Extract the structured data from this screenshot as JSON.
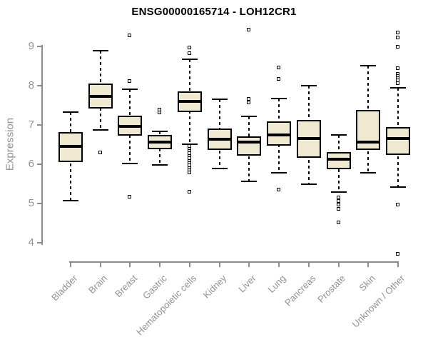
{
  "chart_data": {
    "type": "box",
    "title": "ENSG00000165714 - LOH12CR1",
    "ylabel": "Expression",
    "xlabel": "",
    "ylim": [
      4,
      9
    ],
    "yticks": [
      9,
      8,
      7,
      6,
      5,
      4
    ],
    "grid": false,
    "legend": "none",
    "categories": [
      "Bladder",
      "Brain",
      "Breast",
      "Gastric",
      "Hematopoietic cells",
      "Kidney",
      "Liver",
      "Lung",
      "Pancreas",
      "Prostate",
      "Skin",
      "Unknown / Other"
    ],
    "boxes": [
      {
        "category": "Bladder",
        "whisker_low": 5.07,
        "q1": 6.05,
        "median": 6.45,
        "q3": 6.81,
        "whisker_high": 7.33,
        "outliers_above": [],
        "outliers_below": []
      },
      {
        "category": "Brain",
        "whisker_low": 6.87,
        "q1": 7.42,
        "median": 7.73,
        "q3": 8.06,
        "whisker_high": 8.89,
        "outliers_above": [],
        "outliers_below": [
          6.3
        ]
      },
      {
        "category": "Breast",
        "whisker_low": 6.02,
        "q1": 6.73,
        "median": 6.97,
        "q3": 7.23,
        "whisker_high": 7.91,
        "outliers_above": [
          9.27,
          8.11
        ],
        "outliers_below": [
          5.16
        ]
      },
      {
        "category": "Gastric",
        "whisker_low": 5.98,
        "q1": 6.38,
        "median": 6.56,
        "q3": 6.74,
        "whisker_high": 6.84,
        "outliers_above": [
          7.38,
          7.31
        ],
        "outliers_below": []
      },
      {
        "category": "Hematopoietic cells",
        "whisker_low": 6.51,
        "q1": 7.32,
        "median": 7.6,
        "q3": 7.86,
        "whisker_high": 8.68,
        "outliers_above": [
          8.97,
          8.82
        ],
        "outliers_below": [
          6.45,
          6.39,
          6.33,
          6.27,
          6.2,
          6.14,
          6.08,
          6.02,
          5.96,
          5.9,
          5.84,
          5.78,
          5.3
        ]
      },
      {
        "category": "Kidney",
        "whisker_low": 5.89,
        "q1": 6.36,
        "median": 6.64,
        "q3": 6.91,
        "whisker_high": 7.65,
        "outliers_above": [],
        "outliers_below": []
      },
      {
        "category": "Liver",
        "whisker_low": 5.56,
        "q1": 6.21,
        "median": 6.56,
        "q3": 6.71,
        "whisker_high": 7.22,
        "outliers_above": [
          9.41,
          7.65,
          7.56
        ],
        "outliers_below": []
      },
      {
        "category": "Lung",
        "whisker_low": 5.79,
        "q1": 6.47,
        "median": 6.74,
        "q3": 7.1,
        "whisker_high": 7.68,
        "outliers_above": [
          8.45,
          8.16
        ],
        "outliers_below": [
          5.35
        ]
      },
      {
        "category": "Pancreas",
        "whisker_low": 5.49,
        "q1": 6.16,
        "median": 6.65,
        "q3": 7.13,
        "whisker_high": 8.0,
        "outliers_above": [],
        "outliers_below": []
      },
      {
        "category": "Prostate",
        "whisker_low": 5.3,
        "q1": 5.88,
        "median": 6.13,
        "q3": 6.31,
        "whisker_high": 6.74,
        "outliers_above": [],
        "outliers_below": [
          5.15,
          5.05,
          4.96,
          4.86,
          4.51
        ]
      },
      {
        "category": "Skin",
        "whisker_low": 5.79,
        "q1": 6.36,
        "median": 6.56,
        "q3": 7.39,
        "whisker_high": 8.51,
        "outliers_above": [],
        "outliers_below": []
      },
      {
        "category": "Unknown / Other",
        "whisker_low": 5.42,
        "q1": 6.24,
        "median": 6.65,
        "q3": 6.95,
        "whisker_high": 7.95,
        "outliers_above": [
          9.35,
          9.22,
          8.98,
          8.43,
          8.3,
          8.24,
          8.18,
          8.12,
          8.06
        ],
        "outliers_below": [
          4.97,
          3.71
        ]
      }
    ],
    "colors": {
      "box_fill": "#EFE9D2",
      "box_border": "#000000",
      "median": "#000000",
      "whisker": "#000000",
      "axis_line": "#8c8c8c",
      "axis_text": "#8d929b",
      "title_text": "#000000",
      "background": "#ffffff"
    }
  }
}
